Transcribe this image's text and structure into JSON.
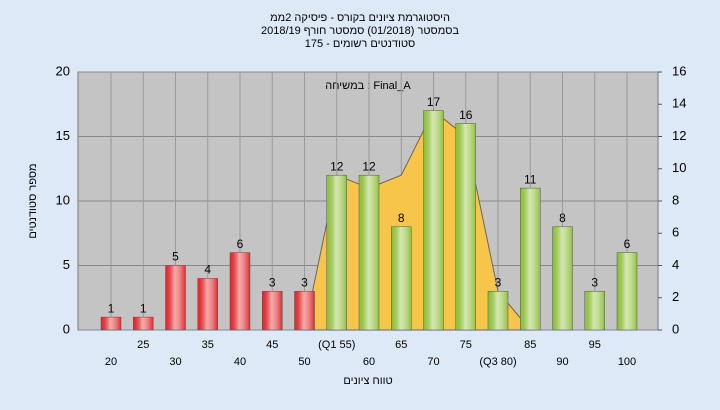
{
  "chart_data": {
    "type": "bar",
    "title": [
      "היסטוגרמת ציונים בקורס - פיסיקה 2ממ",
      "בסמסטר  (01/2018)  סמסטר חורף 2018/19",
      "סטודנטים רשומים - 175"
    ],
    "annotation": "במשיחה : Final_A",
    "x_label": "טווח ציונים",
    "y_label": "מספר סטודנטים",
    "categories": [
      "20",
      "25",
      "30",
      "35",
      "40",
      "45",
      "50",
      "(Q1 55)",
      "60",
      "65",
      "70",
      "75",
      "(Q3 80)",
      "85",
      "90",
      "95",
      "100"
    ],
    "series": [
      {
        "color": "#e0282c",
        "values": [
          1,
          1,
          5,
          4,
          6,
          3,
          3,
          null,
          null,
          null,
          null,
          null,
          null,
          null,
          null,
          null,
          null
        ]
      },
      {
        "color": "#8fbf3a",
        "values": [
          null,
          null,
          null,
          null,
          null,
          null,
          null,
          12,
          12,
          8,
          17,
          16,
          3,
          11,
          8,
          3,
          6
        ]
      },
      {
        "type": "area",
        "axis": "y2",
        "color": "#f7c54a",
        "values": [
          null,
          null,
          null,
          null,
          null,
          null,
          0,
          9.6,
          8.8,
          9.6,
          13.6,
          12,
          2.4,
          0,
          null,
          null,
          null
        ]
      }
    ],
    "ylim": [
      0,
      20
    ],
    "yticks": [
      0,
      5,
      10,
      15,
      20
    ],
    "y2lim": [
      0,
      16
    ],
    "y2ticks": [
      0,
      2,
      4,
      6,
      8,
      10,
      12,
      14,
      16
    ],
    "grid": true
  }
}
